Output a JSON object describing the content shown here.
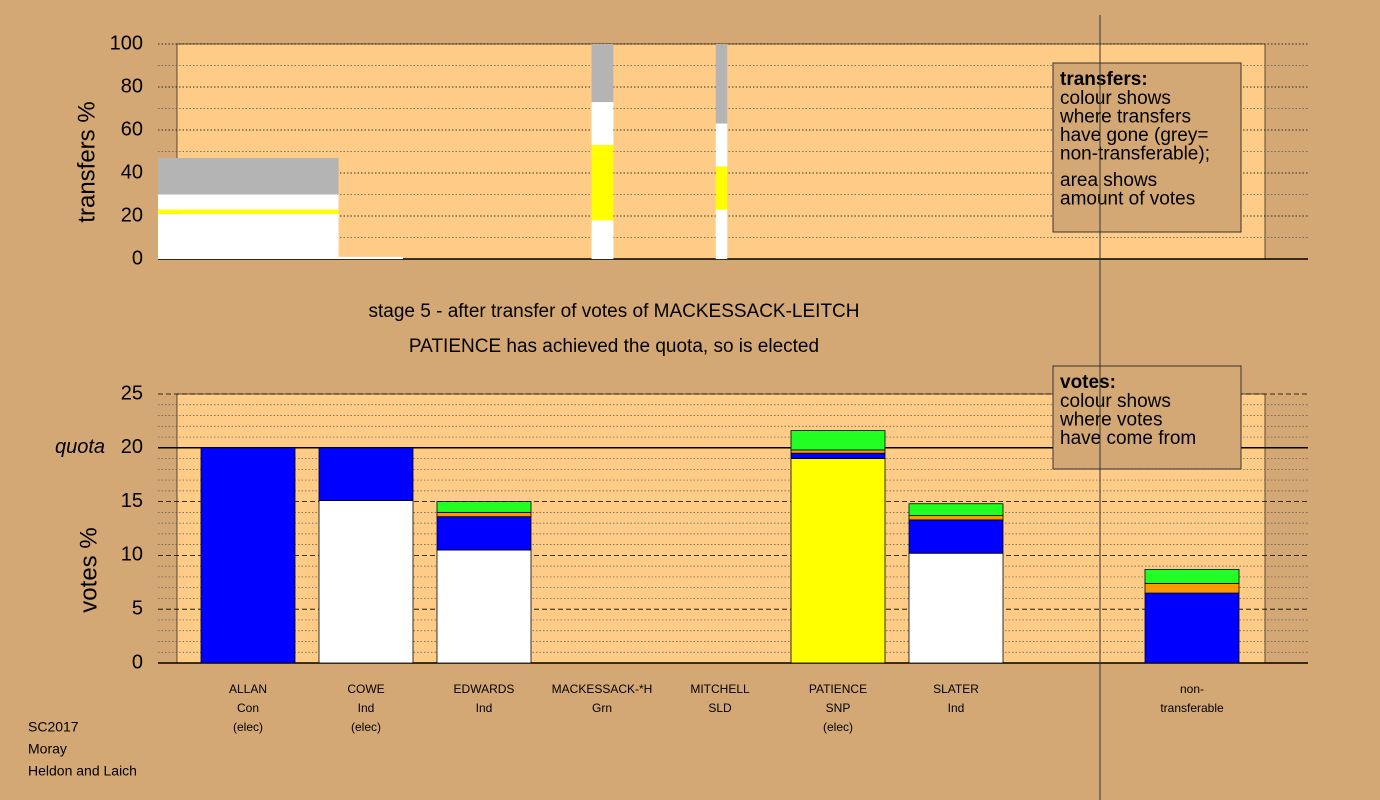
{
  "chart_data": [
    {
      "type": "mosaic",
      "ylabel": "transfers %",
      "ylim": [
        0,
        100
      ],
      "yticks": [
        0,
        20,
        40,
        60,
        80,
        100
      ],
      "minor_yticks": [
        10,
        30,
        50,
        70,
        90
      ],
      "xlim": [
        0,
        100
      ],
      "grid": true,
      "legend_note": {
        "heading": "transfers:",
        "paragraphs": [
          [
            "colour shows",
            "where transfers",
            "have gone (grey=",
            "non-transferable);"
          ],
          [
            "area shows",
            "amount of votes"
          ]
        ]
      },
      "blocks": [
        {
          "x": [
            0,
            15.7
          ],
          "segments": [
            {
              "color": "#ffffff",
              "value": 21
            },
            {
              "color": "#ffff00",
              "value": 2
            },
            {
              "color": "#ffffff",
              "value": 7
            },
            {
              "color": "#b4b4b4",
              "value": 17
            }
          ]
        },
        {
          "x": [
            15.0,
            21.3
          ],
          "segments": [
            {
              "color": "#ffffff",
              "value": 1
            }
          ]
        },
        {
          "x": [
            37.7,
            39.6
          ],
          "segments": [
            {
              "color": "#ffffff",
              "value": 18
            },
            {
              "color": "#ffff00",
              "value": 35
            },
            {
              "color": "#ffffff",
              "value": 20
            },
            {
              "color": "#b4b4b4",
              "value": 27
            }
          ]
        },
        {
          "x": [
            48.5,
            49.5
          ],
          "segments": [
            {
              "color": "#ffffff",
              "value": 23
            },
            {
              "color": "#ffff00",
              "value": 20
            },
            {
              "color": "#ffffff",
              "value": 20
            },
            {
              "color": "#b4b4b4",
              "value": 37
            }
          ]
        }
      ]
    },
    {
      "type": "bar",
      "title": [
        "stage 5 - after transfer of votes of MACKESSACK-LEITCH",
        "PATIENCE has achieved the quota, so is elected"
      ],
      "ylabel": "votes %",
      "ylim": [
        0,
        25
      ],
      "yticks": [
        0,
        5,
        10,
        15,
        {
          "value": 20,
          "label": "20"
        },
        25
      ],
      "minor_yticks": [
        1,
        2,
        3,
        4,
        6,
        7,
        8,
        9,
        11,
        12,
        13,
        14,
        16,
        17,
        18,
        19,
        21,
        22,
        23,
        24
      ],
      "quota": {
        "value": 20,
        "label": "quota"
      },
      "grid": true,
      "stacked": true,
      "legend_note": {
        "heading": "votes:",
        "paragraphs": [
          [
            "colour shows",
            "where votes",
            "have come from"
          ]
        ]
      },
      "categories": [
        [
          "ALLAN",
          "Con",
          "(elec)"
        ],
        [
          "COWE",
          "Ind",
          "(elec)"
        ],
        [
          "EDWARDS",
          "Ind"
        ],
        [
          "MACKESSACK-*H",
          "Grn"
        ],
        [
          "MITCHELL",
          "SLD"
        ],
        [
          "PATIENCE",
          "SNP",
          "(elec)"
        ],
        [
          "SLATER",
          "Ind"
        ],
        null,
        [
          "non-",
          "transferable"
        ]
      ],
      "series": [
        {
          "color": "#ffffff",
          "values": [
            0,
            15.1,
            10.5,
            0,
            0,
            0,
            10.2,
            null,
            0
          ]
        },
        {
          "color": "#ffff00",
          "values": [
            0,
            0,
            0,
            0,
            0,
            19.0,
            0,
            null,
            0
          ]
        },
        {
          "color": "#0000ff",
          "values": [
            20,
            4.9,
            3.1,
            0,
            0,
            0.5,
            3.1,
            null,
            6.5
          ]
        },
        {
          "color": "#ff9900",
          "values": [
            0,
            0,
            0.4,
            0,
            0,
            0.3,
            0.4,
            null,
            0.9
          ]
        },
        {
          "color": "#22ff22",
          "values": [
            0,
            0,
            1.0,
            0,
            0,
            1.8,
            1.1,
            null,
            1.3
          ]
        }
      ]
    }
  ],
  "footer": [
    "SC2017",
    "Moray",
    "Heldon and Laich"
  ]
}
